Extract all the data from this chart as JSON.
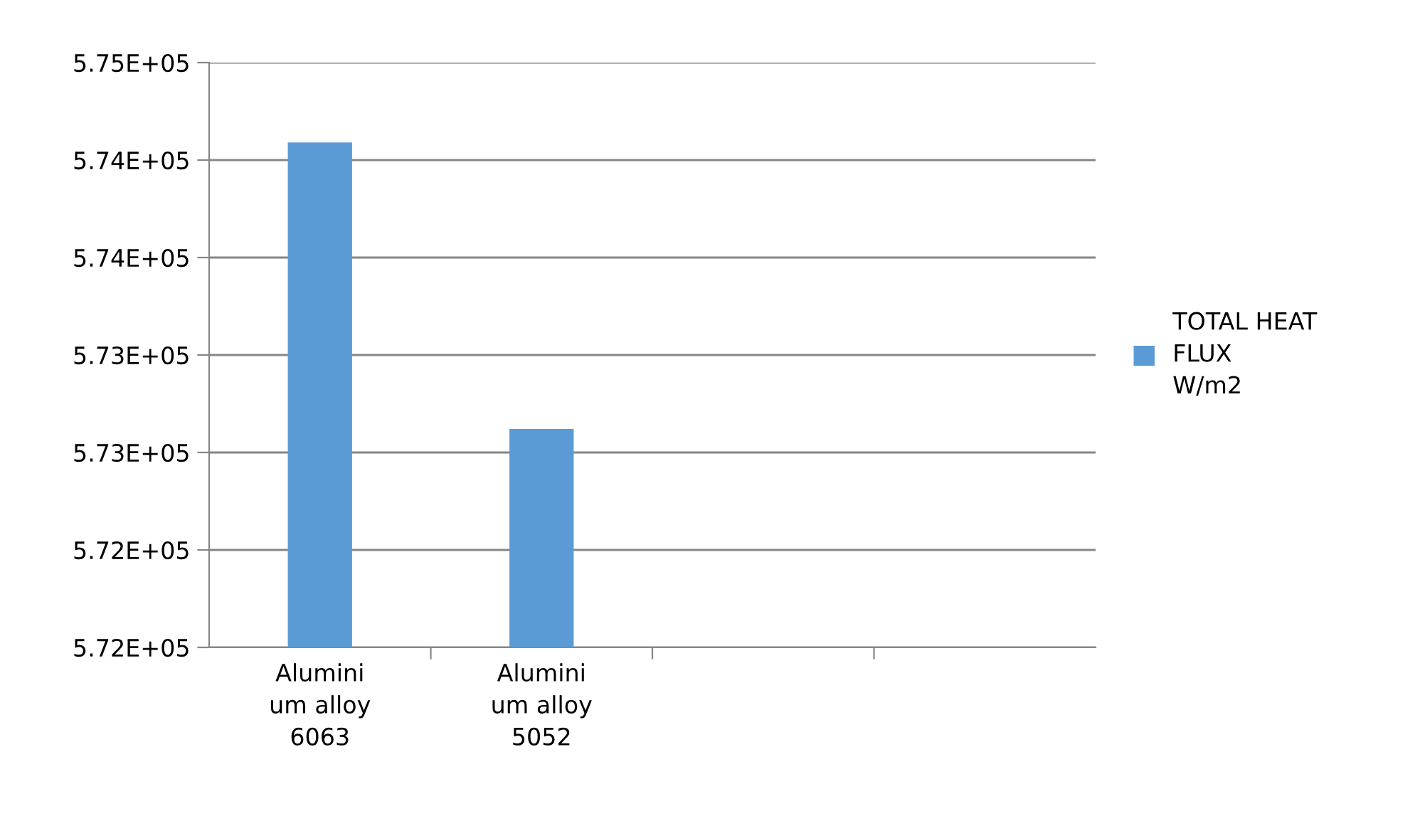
{
  "chart_data": {
    "type": "bar",
    "categories": [
      "Alumini\num alloy\n6063",
      "Alumini\num alloy\n5052",
      null,
      null
    ],
    "series": [
      {
        "name": "TOTAL HEAT\nFLUX\nW/m2",
        "color": "#5b9bd5",
        "values": [
          574590,
          573120,
          null,
          null
        ]
      }
    ],
    "ylim": [
      572000,
      575000
    ],
    "yticks": [
      {
        "value": 572000,
        "label": "5.72E+05"
      },
      {
        "value": 572500,
        "label": "5.72E+05"
      },
      {
        "value": 573000,
        "label": "5.73E+05"
      },
      {
        "value": 573500,
        "label": "5.73E+05"
      },
      {
        "value": 574000,
        "label": "5.74E+05"
      },
      {
        "value": 574500,
        "label": "5.74E+05"
      },
      {
        "value": 575000,
        "label": "5.75E+05"
      }
    ],
    "grid": "y",
    "legend": "right"
  }
}
